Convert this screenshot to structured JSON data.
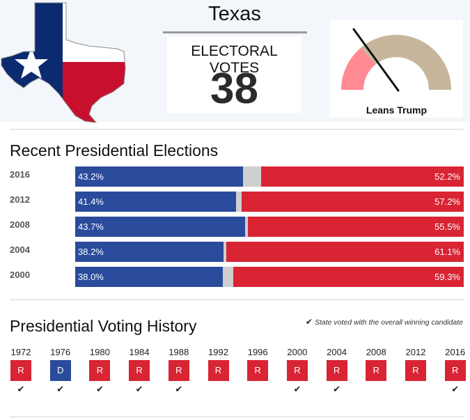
{
  "header": {
    "state_name": "Texas",
    "ev_label": "ELECTORAL VOTES",
    "ev_value": "38"
  },
  "gauge": {
    "label": "Leans Trump",
    "colors": {
      "dem_segment": "#ff8a94",
      "rep_segment": "#c8b69c",
      "needle": "#111111"
    },
    "dem_share": 0.28
  },
  "chart_data": [
    {
      "type": "bar",
      "title": "Recent Presidential Elections",
      "categories": [
        "2016",
        "2012",
        "2008",
        "2004",
        "2000"
      ],
      "series": [
        {
          "values": [
            43.2,
            41.4,
            43.7,
            38.2,
            38.0
          ],
          "labels": [
            "43.2%",
            "41.4%",
            "43.7%",
            "38.2%",
            "38.0%"
          ]
        },
        {
          "values": [
            52.2,
            57.2,
            55.5,
            61.1,
            59.3
          ],
          "labels": [
            "52.2%",
            "57.2%",
            "55.5%",
            "61.1%",
            "59.3%"
          ]
        }
      ],
      "colors": {
        "dem": "#2a4b9b",
        "rep": "#d82433",
        "other": "#cfcfcf"
      },
      "xlim": [
        0,
        100
      ]
    },
    {
      "type": "table",
      "title": "Presidential Voting History",
      "legend_note": "State voted with the overall winning candidate",
      "years": [
        "1972",
        "1976",
        "1980",
        "1984",
        "1988",
        "1992",
        "1996",
        "2000",
        "2004",
        "2008",
        "2012",
        "2016"
      ],
      "results": [
        "R",
        "D",
        "R",
        "R",
        "R",
        "R",
        "R",
        "R",
        "R",
        "R",
        "R",
        "R"
      ],
      "voted_with_winner": [
        true,
        true,
        true,
        true,
        true,
        false,
        false,
        true,
        true,
        false,
        false,
        true
      ],
      "colors": {
        "R": "#d82433",
        "D": "#2a4b9b"
      }
    }
  ]
}
